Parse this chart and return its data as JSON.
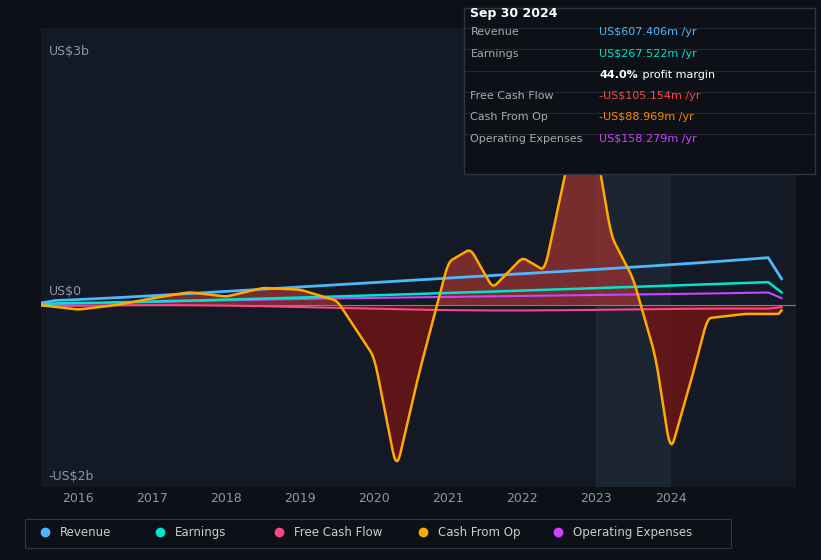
{
  "bg_color": "#0d1117",
  "plot_bg_color": "#131a25",
  "grid_color": "#1e2d3d",
  "title_box_date": "Sep 30 2024",
  "ylabel_top": "US$3b",
  "ylabel_bottom": "-US$2b",
  "ylabel_zero": "US$0",
  "revenue_color": "#4db8ff",
  "earnings_color": "#00e5cc",
  "free_cash_flow_color": "#ff4488",
  "cash_from_op_color": "#ffaa00",
  "operating_expenses_color": "#cc44ff",
  "legend": [
    {
      "label": "Revenue",
      "color": "#4db8ff"
    },
    {
      "label": "Earnings",
      "color": "#00e5cc"
    },
    {
      "label": "Free Cash Flow",
      "color": "#ff4488"
    },
    {
      "label": "Cash From Op",
      "color": "#ffaa00"
    },
    {
      "label": "Operating Expenses",
      "color": "#cc44ff"
    }
  ],
  "info_rows": [
    {
      "label": "Revenue",
      "value": "US$607.406m /yr",
      "value_color": "#4db8ff"
    },
    {
      "label": "Earnings",
      "value": "US$267.522m /yr",
      "value_color": "#00e5cc"
    },
    {
      "label": "",
      "value": "44.0%",
      "value2": " profit margin",
      "value_color": "#ffffff"
    },
    {
      "label": "Free Cash Flow",
      "value": "-US$105.154m /yr",
      "value_color": "#ff4444"
    },
    {
      "label": "Cash From Op",
      "value": "-US$88.969m /yr",
      "value_color": "#ff8800"
    },
    {
      "label": "Operating Expenses",
      "value": "US$158.279m /yr",
      "value_color": "#cc44ff"
    }
  ],
  "cash_from_op_pts_years": [
    2015.5,
    2016.0,
    2016.5,
    2017.0,
    2017.5,
    2018.0,
    2018.5,
    2019.0,
    2019.5,
    2020.0,
    2020.3,
    2020.6,
    2021.0,
    2021.3,
    2021.6,
    2022.0,
    2022.3,
    2022.5,
    2022.8,
    2023.0,
    2023.2,
    2023.5,
    2023.8,
    2024.0,
    2024.3,
    2024.5,
    2025.0,
    2025.5
  ],
  "cash_from_op_pts_vals": [
    0.0,
    -0.05,
    0.0,
    0.08,
    0.15,
    0.1,
    0.2,
    0.18,
    0.05,
    -0.6,
    -1.9,
    -0.8,
    0.5,
    0.65,
    0.2,
    0.55,
    0.4,
    1.2,
    2.4,
    1.8,
    0.8,
    0.3,
    -0.6,
    -1.7,
    -0.8,
    -0.15,
    -0.1,
    -0.1
  ]
}
